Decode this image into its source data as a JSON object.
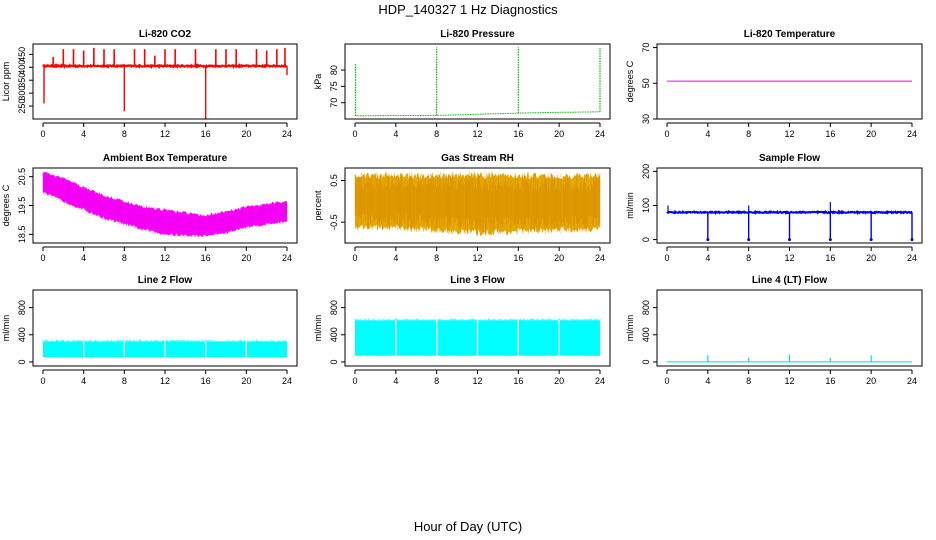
{
  "figure": {
    "title": "HDP_140327  1 Hz Diagnostics",
    "xlabel": "Hour of Day (UTC)"
  },
  "chart_data": [
    {
      "type": "line",
      "title": "Li-820 CO2",
      "ylabel": "Licor ppm",
      "color": "#ff0000",
      "x_ticks": [
        0,
        4,
        8,
        12,
        16,
        20,
        24
      ],
      "xlim": [
        0,
        24
      ],
      "ylim": [
        200,
        490
      ],
      "y_ticks": [
        250,
        300,
        350,
        400,
        450
      ],
      "y_tick_labels": [
        "250",
        "300",
        "350",
        "400",
        "450"
      ],
      "baseline": 405,
      "noise": 6,
      "spike_times": [
        1.0,
        2.0,
        3.0,
        4.0,
        5.0,
        6.0,
        7.0,
        9.0,
        10.0,
        11.0,
        12.0,
        13.0,
        15.0,
        17.0,
        18.0,
        19.0,
        21.0,
        22.0,
        23.0,
        23.8
      ],
      "spike_values": [
        440,
        470,
        470,
        465,
        475,
        470,
        470,
        470,
        470,
        445,
        470,
        470,
        470,
        470,
        470,
        470,
        470,
        465,
        470,
        475
      ],
      "dip_times": [
        0.1,
        8.0,
        16.0,
        24.0
      ],
      "dip_values": [
        260,
        230,
        200,
        370
      ]
    },
    {
      "type": "line",
      "title": "Li-820 Pressure",
      "ylabel": "kPa",
      "color": "#00bb00",
      "x_ticks": [
        0,
        4,
        8,
        12,
        16,
        20,
        24
      ],
      "xlim": [
        0,
        24
      ],
      "ylim": [
        65,
        88
      ],
      "y_ticks": [
        70,
        75,
        80
      ],
      "y_tick_labels": [
        "70",
        "75",
        "80"
      ],
      "x": [
        0,
        8,
        16,
        19,
        24
      ],
      "y": [
        66.0,
        66.1,
        66.8,
        67.0,
        67.2
      ],
      "spike_times": [
        0.05,
        8.0,
        16.0,
        24.0
      ],
      "spike_values": [
        82,
        87,
        87,
        87
      ]
    },
    {
      "type": "line",
      "title": "Li-820 Temperature",
      "ylabel": "degrees C",
      "color": "#ff00ff",
      "x_ticks": [
        0,
        4,
        8,
        12,
        16,
        20,
        24
      ],
      "xlim": [
        0,
        24
      ],
      "ylim": [
        30,
        72
      ],
      "y_ticks": [
        30,
        50,
        70
      ],
      "y_tick_labels": [
        "30",
        "50",
        "70"
      ],
      "x": [
        0,
        24
      ],
      "y": [
        51.2,
        51.2
      ]
    },
    {
      "type": "area",
      "title": "Ambient Box Temperature",
      "ylabel": "degrees C",
      "color": "#ff00ff",
      "x_ticks": [
        0,
        4,
        8,
        12,
        16,
        20,
        24
      ],
      "xlim": [
        0,
        24
      ],
      "ylim": [
        18.2,
        20.8
      ],
      "y_ticks": [
        18.5,
        19.5,
        20.5
      ],
      "y_tick_labels": [
        "18.5",
        "19.5",
        "20.5"
      ],
      "x": [
        0,
        2,
        4,
        6,
        8,
        10,
        12,
        14,
        16,
        18,
        20,
        22,
        24
      ],
      "upper": [
        20.7,
        20.5,
        20.2,
        19.9,
        19.7,
        19.5,
        19.4,
        19.3,
        19.2,
        19.35,
        19.5,
        19.6,
        19.7
      ],
      "lower": [
        19.9,
        19.6,
        19.3,
        19.0,
        18.8,
        18.6,
        18.45,
        18.4,
        18.4,
        18.5,
        18.7,
        18.8,
        18.9
      ]
    },
    {
      "type": "area",
      "title": "Gas Stream RH",
      "ylabel": "percent",
      "color": "#e6a800",
      "x_ticks": [
        0,
        4,
        8,
        12,
        16,
        20,
        24
      ],
      "xlim": [
        0,
        24
      ],
      "ylim": [
        -1.0,
        0.8
      ],
      "y_ticks": [
        -0.5,
        0.5
      ],
      "y_tick_labels": [
        "-0.5",
        "0.5"
      ],
      "x": [
        0,
        6,
        12,
        18,
        24
      ],
      "upper": [
        0.7,
        0.7,
        0.72,
        0.7,
        0.7
      ],
      "lower": [
        -0.7,
        -0.75,
        -0.85,
        -0.8,
        -0.75
      ]
    },
    {
      "type": "line",
      "title": "Sample Flow",
      "ylabel": "ml/min",
      "color": "#0000ee",
      "x_ticks": [
        0,
        4,
        8,
        12,
        16,
        20,
        24
      ],
      "xlim": [
        0,
        24
      ],
      "ylim": [
        -10,
        210
      ],
      "y_ticks": [
        0,
        100,
        200
      ],
      "y_tick_labels": [
        "0",
        "100",
        "200"
      ],
      "baseline": 80,
      "noise": 4,
      "dip_times": [
        4,
        8,
        12,
        16,
        20,
        24
      ],
      "dip_values": [
        0,
        0,
        0,
        0,
        0,
        0
      ],
      "spike_times": [
        0.1,
        8.0,
        16.0
      ],
      "spike_values": [
        100,
        100,
        110
      ]
    },
    {
      "type": "area",
      "title": "Line 2 Flow",
      "ylabel": "ml/min",
      "color": "#00ffff",
      "x_ticks": [
        0,
        4,
        8,
        12,
        16,
        20,
        24
      ],
      "xlim": [
        0,
        24
      ],
      "ylim": [
        -60,
        1060
      ],
      "y_ticks": [
        0,
        400,
        800
      ],
      "y_tick_labels": [
        "0",
        "400",
        "800"
      ],
      "x": [
        0,
        24
      ],
      "upper": [
        300,
        300
      ],
      "lower": [
        70,
        70
      ],
      "gap_times": [
        4,
        8,
        12,
        16,
        20
      ]
    },
    {
      "type": "area",
      "title": "Line 3 Flow",
      "ylabel": "ml/min",
      "color": "#00ffff",
      "x_ticks": [
        0,
        4,
        8,
        12,
        16,
        20,
        24
      ],
      "xlim": [
        0,
        24
      ],
      "ylim": [
        -60,
        1060
      ],
      "y_ticks": [
        0,
        400,
        800
      ],
      "y_tick_labels": [
        "0",
        "400",
        "800"
      ],
      "x": [
        0,
        24
      ],
      "upper": [
        610,
        610
      ],
      "lower": [
        90,
        90
      ],
      "gap_times": [
        4,
        8,
        12,
        16,
        20
      ]
    },
    {
      "type": "line",
      "title": "Line 4 (LT) Flow",
      "ylabel": "ml/min",
      "color": "#00dddd",
      "x_ticks": [
        0,
        4,
        8,
        12,
        16,
        20,
        24
      ],
      "xlim": [
        0,
        24
      ],
      "ylim": [
        -60,
        1060
      ],
      "y_ticks": [
        0,
        400,
        800
      ],
      "y_tick_labels": [
        "0",
        "400",
        "800"
      ],
      "baseline": 0,
      "noise": 0,
      "spike_times": [
        4,
        8,
        12,
        16,
        20
      ],
      "spike_values": [
        100,
        60,
        110,
        60,
        100
      ]
    }
  ]
}
